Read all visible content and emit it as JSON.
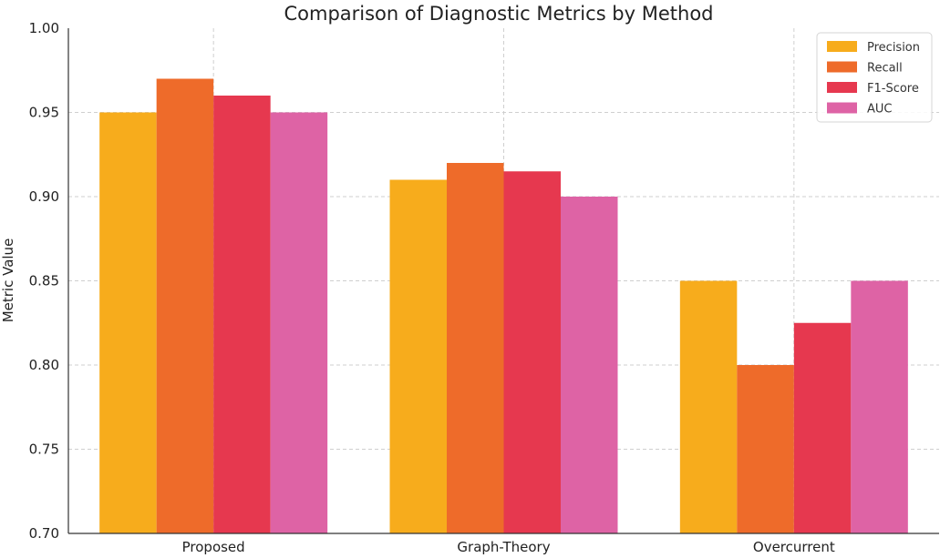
{
  "chart_data": {
    "type": "bar",
    "title": "Comparison of Diagnostic Metrics by Method",
    "xlabel": "",
    "ylabel": "Metric Value",
    "categories": [
      "Proposed",
      "Graph-Theory",
      "Overcurrent"
    ],
    "series": [
      {
        "name": "Precision",
        "color": "#F7AC1C",
        "values": [
          0.95,
          0.91,
          0.85
        ]
      },
      {
        "name": "Recall",
        "color": "#EE6B2A",
        "values": [
          0.97,
          0.92,
          0.8
        ]
      },
      {
        "name": "F1-Score",
        "color": "#E6384F",
        "values": [
          0.96,
          0.915,
          0.825
        ]
      },
      {
        "name": "AUC",
        "color": "#DE63A5",
        "values": [
          0.95,
          0.9,
          0.85
        ]
      }
    ],
    "ylim": [
      0.7,
      1.0
    ],
    "yticks": [
      "0.70",
      "0.75",
      "0.80",
      "0.85",
      "0.90",
      "0.95",
      "1.00"
    ],
    "grid": true,
    "legend_position": "top-right"
  }
}
